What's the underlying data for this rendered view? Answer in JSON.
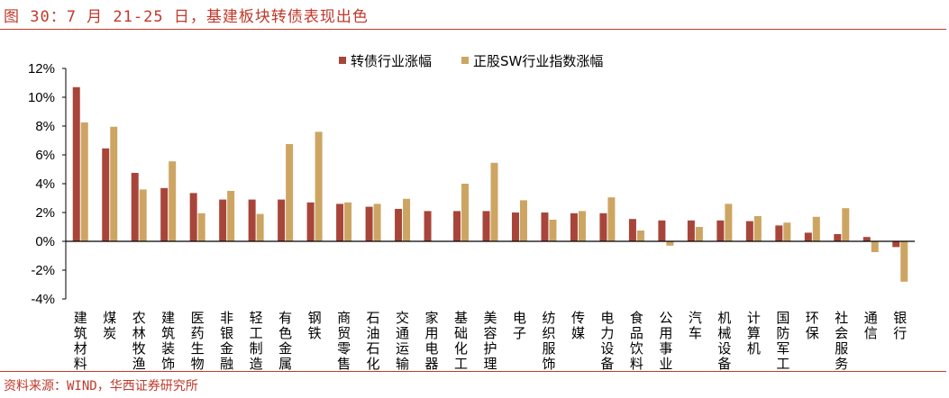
{
  "title": "图 30：7 月 21-25 日，基建板块转债表现出色",
  "source": "资料来源：WIND，华西证券研究所",
  "chart_data": {
    "type": "bar",
    "title": "",
    "xlabel": "",
    "ylabel": "",
    "ylim": [
      -4,
      12
    ],
    "yticks": [
      "-4%",
      "-2%",
      "0%",
      "2%",
      "4%",
      "6%",
      "8%",
      "10%",
      "12%"
    ],
    "legend_position": "top-center",
    "grid": false,
    "categories": [
      "建筑材料",
      "煤炭",
      "农林牧渔",
      "建筑装饰",
      "医药生物",
      "非银金融",
      "轻工制造",
      "有色金属",
      "钢铁",
      "商贸零售",
      "石油石化",
      "交通运输",
      "家用电器",
      "基础化工",
      "美容护理",
      "电子",
      "纺织服饰",
      "传媒",
      "电力设备",
      "食品饮料",
      "公用事业",
      "汽车",
      "机械设备",
      "计算机",
      "国防军工",
      "环保",
      "社会服务",
      "通信",
      "银行"
    ],
    "series": [
      {
        "name": "转债行业涨幅",
        "color": "#A8453A",
        "values": [
          10.7,
          6.45,
          4.75,
          3.7,
          3.35,
          2.9,
          2.9,
          2.9,
          2.7,
          2.6,
          2.4,
          2.25,
          2.1,
          2.1,
          2.1,
          2.0,
          2.0,
          1.95,
          1.95,
          1.55,
          1.45,
          1.45,
          1.45,
          1.4,
          1.1,
          0.6,
          0.5,
          0.3,
          -0.4
        ]
      },
      {
        "name": "正股SW行业指数涨幅",
        "color": "#CDA563",
        "values": [
          8.25,
          7.95,
          3.6,
          5.55,
          1.95,
          3.5,
          1.9,
          6.75,
          7.6,
          2.7,
          2.6,
          2.95,
          0,
          4.0,
          5.45,
          2.85,
          1.5,
          2.1,
          3.05,
          0.75,
          -0.3,
          1.0,
          2.6,
          1.75,
          1.3,
          1.7,
          2.3,
          -0.75,
          -2.8
        ]
      }
    ]
  }
}
